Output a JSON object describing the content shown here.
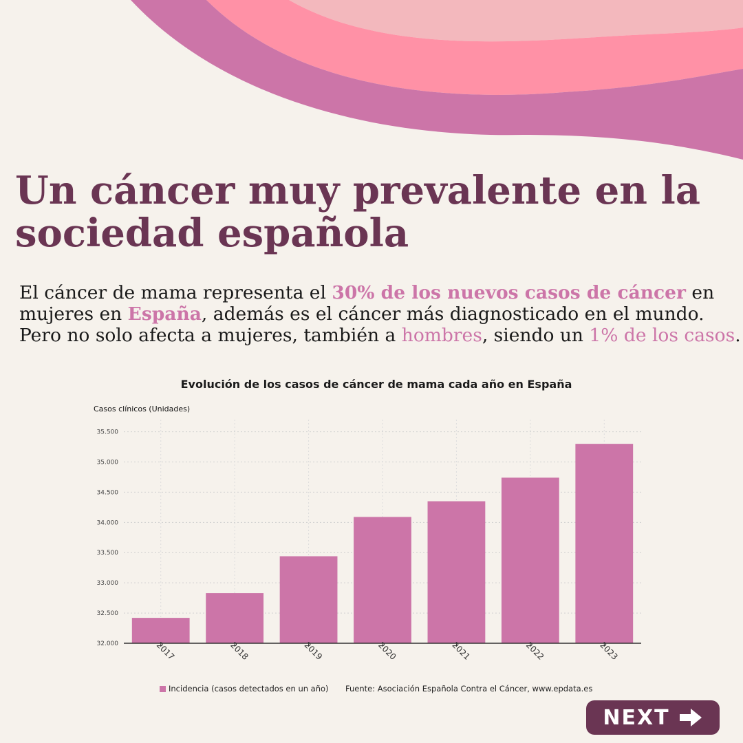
{
  "colors": {
    "background": "#f6f2ec",
    "title": "#6a3553",
    "accent": "#cc75a8",
    "wave_back": "#f3b8bd",
    "wave_mid": "#ff91a6",
    "wave_front": "#cc75a8",
    "button": "#6a3553"
  },
  "title": "Un cáncer muy prevalente en la sociedad española",
  "intro": {
    "p1": "El cáncer de mama representa el ",
    "h1": "30% de los nuevos casos de cáncer",
    "p2": " en mujeres en ",
    "h2": "España",
    "p3": ", además es el cáncer más diagnosticado en el mundo. Pero no solo afecta a mujeres, también a ",
    "h3": "hombres",
    "p4": ", siendo un ",
    "h4": "1% de los casos",
    "p5": "."
  },
  "chart_data": {
    "type": "bar",
    "title": "Evolución de los casos de cáncer de mama cada año en España",
    "ylabel": "Casos clínicos (Unidades)",
    "xlabel": "",
    "categories": [
      "2017",
      "2018",
      "2019",
      "2020",
      "2021",
      "2022",
      "2023"
    ],
    "series": [
      {
        "name": "Incidencia (casos detectados en un año)",
        "values": [
          32420,
          32830,
          33440,
          34090,
          34350,
          34740,
          35300
        ]
      }
    ],
    "ylim": [
      32000,
      35700
    ],
    "yticks": [
      32000,
      32500,
      33000,
      33500,
      34000,
      34500,
      35000,
      35500
    ],
    "ytick_labels": [
      "32.000",
      "32.500",
      "33.000",
      "33.500",
      "34.000",
      "34.500",
      "35.000",
      "35.500"
    ],
    "grid": true,
    "legend": "bottom"
  },
  "footer": {
    "legend_label": "Incidencia (casos detectados en un año)",
    "source": "Fuente: Asociación Española Contra el Cáncer, www.epdata.es"
  },
  "next_button": {
    "label": "NEXT",
    "icon": "arrow-right-icon"
  }
}
